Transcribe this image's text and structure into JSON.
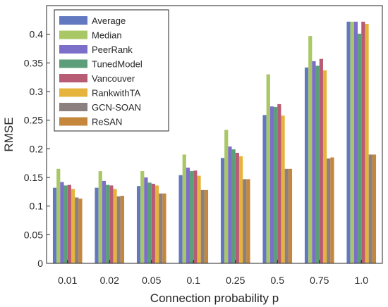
{
  "chart_data": {
    "type": "bar",
    "xlabel": "Connection probability p",
    "ylabel": "RMSE",
    "ylim": [
      0,
      0.45
    ],
    "yticks": [
      "0",
      "0.05",
      "0.1",
      "0.15",
      "0.2",
      "0.25",
      "0.3",
      "0.35",
      "0.4"
    ],
    "ytick_values": [
      0,
      0.05,
      0.1,
      0.15,
      0.2,
      0.25,
      0.3,
      0.35,
      0.4
    ],
    "categories": [
      "0.01",
      "0.02",
      "0.05",
      "0.1",
      "0.25",
      "0.5",
      "0.75",
      "1.0"
    ],
    "legend_position": "top-left",
    "grid": false,
    "series": [
      {
        "name": "Average",
        "color": "#6278C0",
        "values": [
          0.132,
          0.132,
          0.135,
          0.154,
          0.184,
          0.259,
          0.342,
          0.422
        ]
      },
      {
        "name": "Median",
        "color": "#A9C765",
        "values": [
          0.165,
          0.161,
          0.161,
          0.19,
          0.233,
          0.33,
          0.397,
          0.422
        ]
      },
      {
        "name": "PeerRank",
        "color": "#7C6FC9",
        "values": [
          0.142,
          0.144,
          0.15,
          0.167,
          0.204,
          0.274,
          0.353,
          0.422
        ]
      },
      {
        "name": "TunedModel",
        "color": "#5D9E7A",
        "values": [
          0.136,
          0.137,
          0.141,
          0.161,
          0.199,
          0.273,
          0.345,
          0.401
        ]
      },
      {
        "name": "Vancouver",
        "color": "#B85B75",
        "values": [
          0.137,
          0.136,
          0.139,
          0.162,
          0.193,
          0.278,
          0.357,
          0.422
        ]
      },
      {
        "name": "RankwithTA",
        "color": "#E6B43C",
        "values": [
          0.13,
          0.13,
          0.136,
          0.153,
          0.187,
          0.258,
          0.337,
          0.418
        ]
      },
      {
        "name": "GCN-SOAN",
        "color": "#8C7F80",
        "values": [
          0.115,
          0.117,
          0.122,
          0.128,
          0.147,
          0.165,
          0.183,
          0.19
        ]
      },
      {
        "name": "ReSAN",
        "color": "#C5873C",
        "values": [
          0.113,
          0.118,
          0.122,
          0.128,
          0.147,
          0.165,
          0.185,
          0.19
        ]
      }
    ]
  }
}
